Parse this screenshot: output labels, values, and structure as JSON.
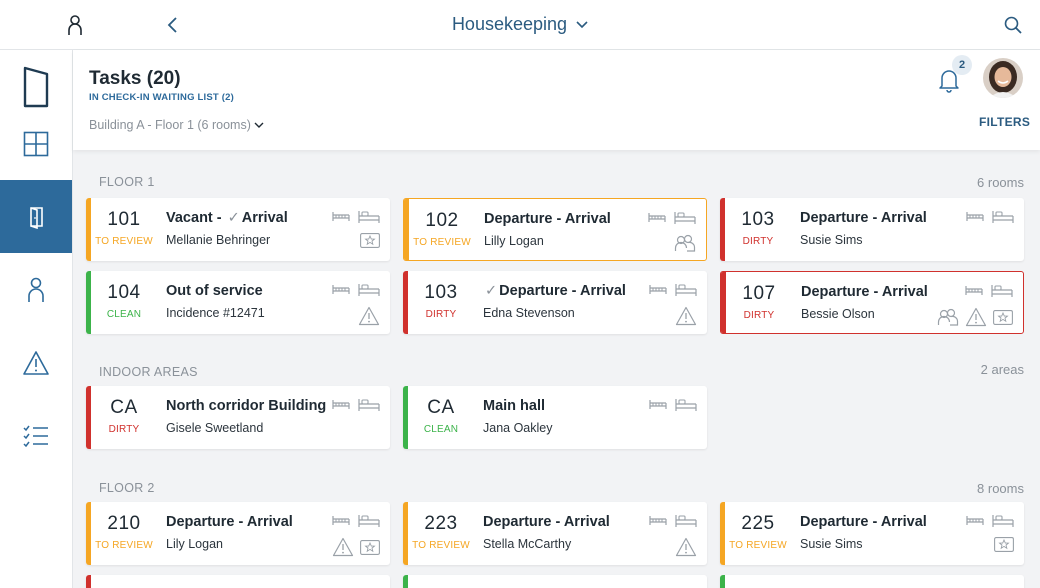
{
  "topbar": {
    "title": "Housekeeping"
  },
  "header": {
    "title": "Tasks (20)",
    "subtitle": "IN CHECK-IN WAITING LIST (2)",
    "location": "Building A - Floor 1 (6 rooms)",
    "notification_count": "2",
    "filters_label": "FILTERS"
  },
  "colors": {
    "review": "#f5a623",
    "dirty": "#d0312d",
    "clean": "#3cb34a",
    "accent": "#2d6a9b"
  },
  "sections": [
    {
      "label": "FLOOR 1",
      "count": "6 rooms"
    },
    {
      "label": "INDOOR AREAS",
      "count": "2 areas"
    },
    {
      "label": "FLOOR 2",
      "count": "8 rooms"
    }
  ],
  "cards": [
    {
      "num": "101",
      "status": "TO REVIEW",
      "check": true,
      "title_pre": "Vacant -",
      "title": "Arrival",
      "name": "Mellanie Behringer",
      "extra": [
        "star"
      ]
    },
    {
      "num": "102",
      "status": "TO REVIEW",
      "title": "Departure - Arrival",
      "name": "Lilly Logan",
      "extra": [
        "guests"
      ]
    },
    {
      "num": "103",
      "status": "DIRTY",
      "title": "Departure - Arrival",
      "name": "Susie Sims",
      "extra": []
    },
    {
      "num": "104",
      "status": "CLEAN",
      "title": "Out of service",
      "name": "Incidence #12471",
      "extra": [
        "warning"
      ]
    },
    {
      "num": "103",
      "status": "DIRTY",
      "check": true,
      "title": "Departure - Arrival",
      "name": "Edna Stevenson",
      "extra": [
        "warning"
      ]
    },
    {
      "num": "107",
      "status": "DIRTY",
      "title": "Departure - Arrival",
      "name": "Bessie Olson",
      "extra": [
        "guests",
        "warning",
        "star"
      ]
    },
    {
      "num": "CA",
      "status": "DIRTY",
      "title": "North corridor Building A",
      "name": "Gisele Sweetland",
      "extra": []
    },
    {
      "num": "CA",
      "status": "CLEAN",
      "title": "Main hall",
      "name": "Jana Oakley",
      "extra": []
    },
    {
      "num": "210",
      "status": "TO REVIEW",
      "title": "Departure - Arrival",
      "name": "Lily Logan",
      "extra": [
        "warning",
        "star"
      ]
    },
    {
      "num": "223",
      "status": "TO REVIEW",
      "title": "Departure - Arrival",
      "name": "Stella McCarthy",
      "extra": [
        "warning"
      ]
    },
    {
      "num": "225",
      "status": "TO REVIEW",
      "title": "Departure - Arrival",
      "name": "Susie Sims",
      "extra": [
        "star"
      ]
    }
  ]
}
